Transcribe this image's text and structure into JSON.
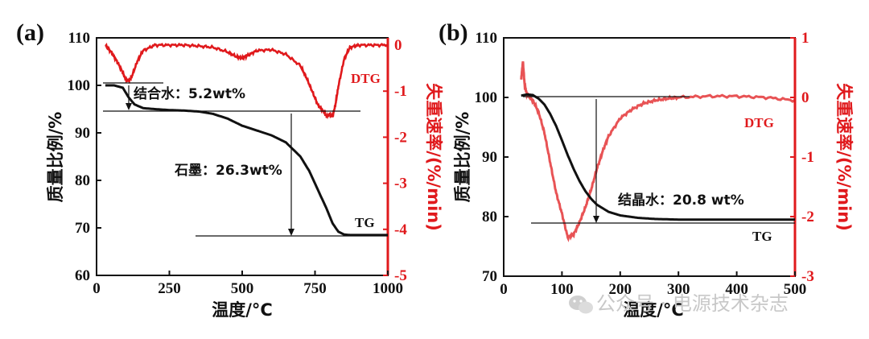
{
  "chart_data": [
    {
      "panel_label": "(a)",
      "type": "line",
      "xlabel": "温度/°C",
      "ylabel_left": "质量比例/%",
      "ylabel_right": "失重速率/(%/min)",
      "xlim": [
        0,
        1000
      ],
      "ylim_left": [
        60,
        110
      ],
      "ylim_right": [
        -5,
        0.3
      ],
      "xticks": [
        "0",
        "250",
        "500",
        "750",
        "1000"
      ],
      "yticks_left": [
        "60",
        "70",
        "80",
        "90",
        "100",
        "110"
      ],
      "yticks_right": [
        "0",
        "-1",
        "-2",
        "-3",
        "-4",
        "-5"
      ],
      "series": [
        {
          "name": "TG",
          "color": "#111111",
          "axis": "left",
          "x": [
            30,
            60,
            90,
            110,
            130,
            160,
            200,
            250,
            300,
            350,
            400,
            450,
            500,
            550,
            600,
            650,
            700,
            730,
            760,
            790,
            810,
            830,
            850,
            870,
            900,
            950,
            1000
          ],
          "y": [
            100,
            100,
            99.5,
            97.5,
            96,
            95.2,
            95,
            94.8,
            94.7,
            94.5,
            94,
            93,
            91.5,
            90.5,
            89.5,
            88,
            85,
            82,
            78,
            74,
            71,
            69.2,
            68.6,
            68.5,
            68.5,
            68.5,
            68.5
          ]
        },
        {
          "name": "DTG",
          "color": "#e0191c",
          "axis": "right",
          "x": [
            30,
            50,
            70,
            90,
            100,
            110,
            120,
            140,
            160,
            200,
            250,
            300,
            350,
            400,
            450,
            480,
            500,
            520,
            550,
            600,
            650,
            700,
            720,
            740,
            760,
            780,
            790,
            800,
            810,
            820,
            830,
            850,
            870,
            900,
            950,
            1000
          ],
          "y": [
            0,
            -0.15,
            -0.35,
            -0.6,
            -0.75,
            -0.78,
            -0.7,
            -0.35,
            -0.12,
            0,
            0,
            0,
            -0.02,
            -0.05,
            -0.15,
            -0.25,
            -0.28,
            -0.22,
            -0.12,
            -0.1,
            -0.2,
            -0.45,
            -0.7,
            -1.0,
            -1.3,
            -1.45,
            -1.55,
            -1.5,
            -1.55,
            -1.3,
            -0.9,
            -0.3,
            -0.05,
            0,
            0,
            0
          ]
        }
      ],
      "annotations": [
        {
          "text": "结合水：5.2wt%"
        },
        {
          "text": "石墨：26.3wt%"
        }
      ],
      "series_labels": [
        "TG",
        "DTG"
      ]
    },
    {
      "panel_label": "(b)",
      "type": "line",
      "xlabel": "温度/°C",
      "ylabel_left": "质量比例/%",
      "ylabel_right": "失重速率/(%/min)",
      "xlim": [
        0,
        500
      ],
      "ylim_left": [
        70,
        110
      ],
      "ylim_right": [
        -3,
        1
      ],
      "xticks": [
        "0",
        "100",
        "200",
        "300",
        "400",
        "500"
      ],
      "yticks_left": [
        "70",
        "80",
        "90",
        "100",
        "110"
      ],
      "yticks_right": [
        "1",
        "0",
        "-1",
        "-2",
        "-3"
      ],
      "series": [
        {
          "name": "TG",
          "color": "#111111",
          "axis": "left",
          "x": [
            30,
            40,
            50,
            60,
            70,
            80,
            90,
            100,
            110,
            120,
            130,
            140,
            150,
            160,
            180,
            200,
            230,
            260,
            300,
            350,
            400,
            450,
            500
          ],
          "y": [
            100.3,
            100.5,
            100.4,
            99.8,
            98.8,
            97.2,
            95.2,
            92.8,
            90.3,
            88.0,
            86.0,
            84.3,
            83.0,
            82.0,
            80.8,
            80.2,
            79.8,
            79.6,
            79.5,
            79.5,
            79.5,
            79.5,
            79.5
          ]
        },
        {
          "name": "DTG",
          "color": "#e0191c",
          "axis": "right",
          "x": [
            30,
            33,
            36,
            40,
            50,
            60,
            70,
            80,
            90,
            100,
            110,
            120,
            130,
            140,
            150,
            160,
            170,
            180,
            200,
            220,
            240,
            260,
            280,
            300,
            350,
            400,
            450,
            500
          ],
          "y": [
            0.3,
            0.6,
            0.2,
            0.05,
            -0.05,
            -0.25,
            -0.6,
            -1.1,
            -1.6,
            -1.95,
            -2.35,
            -2.3,
            -2.1,
            -1.85,
            -1.55,
            -1.2,
            -0.9,
            -0.65,
            -0.35,
            -0.2,
            -0.1,
            -0.05,
            -0.02,
            0,
            0.02,
            0.02,
            0,
            -0.05
          ]
        }
      ],
      "annotations": [
        {
          "text": "结晶水：20.8 wt%"
        }
      ],
      "series_labels": [
        "DTG",
        "TG"
      ]
    }
  ],
  "watermark": {
    "text": "公众号 · 电源技术杂志",
    "icon": "wechat-icon"
  }
}
